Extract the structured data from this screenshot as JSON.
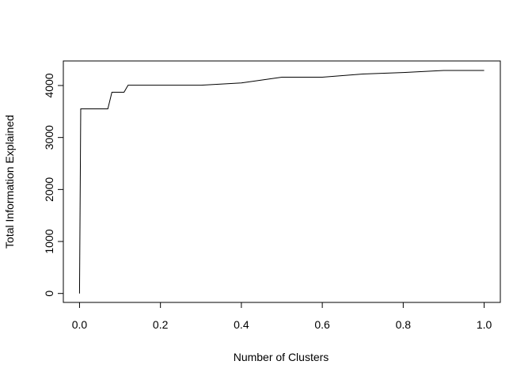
{
  "chart_data": {
    "type": "line",
    "title": "",
    "xlabel": "Number of Clusters",
    "ylabel": "Total Information Explained",
    "xlim": [
      -0.04,
      1.04
    ],
    "ylim": [
      -172,
      4472
    ],
    "xticks": [
      0,
      0.2,
      0.4,
      0.6,
      0.8,
      1
    ],
    "xtick_labels": [
      "0.0",
      "0.2",
      "0.4",
      "0.6",
      "0.8",
      "1.0"
    ],
    "yticks": [
      0,
      1000,
      2000,
      3000,
      4000
    ],
    "ytick_labels": [
      "0",
      "1000",
      "2000",
      "3000",
      "4000"
    ],
    "grid": false,
    "legend": "none",
    "line_color": "#000000",
    "series": [
      {
        "x": [
          0,
          0.003,
          0.07,
          0.08,
          0.11,
          0.12,
          0.3,
          0.4,
          0.5,
          0.6,
          0.7,
          0.8,
          0.9,
          1.0
        ],
        "values": [
          0,
          3550,
          3550,
          3870,
          3870,
          4005,
          4005,
          4050,
          4160,
          4160,
          4220,
          4250,
          4290,
          4290
        ]
      }
    ]
  }
}
